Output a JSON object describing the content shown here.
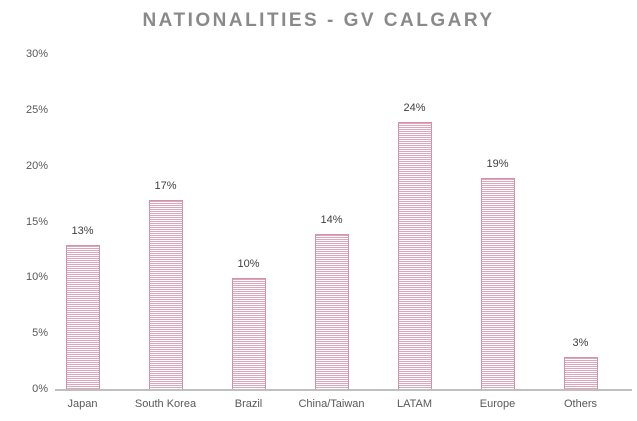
{
  "colors": {
    "bar_stripe": "#dfa6b9",
    "bar_border": "#d193a9",
    "bar_background": "#ffffff",
    "title_text": "#8a8a8a",
    "axis_text": "#595959",
    "data_label_text": "#404040",
    "axis_line": "#bfbfbf"
  },
  "chart_data": {
    "type": "bar",
    "title": "NATIONALITIES - GV CALGARY",
    "categories": [
      "Japan",
      "South Korea",
      "Brazil",
      "China/Taiwan",
      "LATAM",
      "Europe",
      "Others"
    ],
    "values": [
      13,
      17,
      10,
      14,
      24,
      19,
      3
    ],
    "labels": [
      "13%",
      "17%",
      "10%",
      "14%",
      "24%",
      "19%",
      "3%"
    ],
    "xlabel": "",
    "ylabel": "",
    "ylim": [
      0,
      30
    ],
    "ytick_values": [
      0,
      5,
      10,
      15,
      20,
      25,
      30
    ],
    "ytick_labels": [
      "0%",
      "5%",
      "10%",
      "15%",
      "20%",
      "25%",
      "30%"
    ],
    "grid": false,
    "legend": false,
    "bar_fill_style": "horizontal-stripes"
  }
}
